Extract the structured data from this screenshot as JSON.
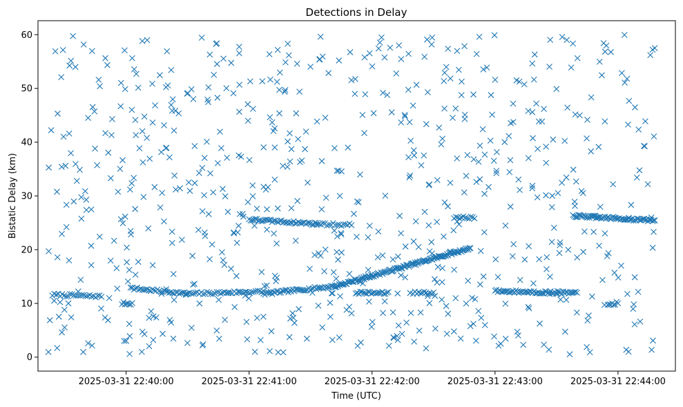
{
  "chart_data": {
    "type": "scatter",
    "title": "Detections in Delay",
    "xlabel": "Time (UTC)",
    "ylabel": "Bistatic Delay (km)",
    "marker": "x",
    "color": "#1f77b4",
    "xlim": [
      "2025-03-31 22:39:17",
      "2025-03-31 22:44:28"
    ],
    "ylim": [
      -2.6,
      62.6
    ],
    "grid": false,
    "x_ticks": [
      {
        "time": "2025-03-31 22:40:00",
        "label": "2025-03-31 22:40:00"
      },
      {
        "time": "2025-03-31 22:41:00",
        "label": "2025-03-31 22:41:00"
      },
      {
        "time": "2025-03-31 22:42:00",
        "label": "2025-03-31 22:42:00"
      },
      {
        "time": "2025-03-31 22:43:00",
        "label": "2025-03-31 22:43:00"
      },
      {
        "time": "2025-03-31 22:44:00",
        "label": "2025-03-31 22:44:00"
      }
    ],
    "y_ticks": [
      {
        "value": 0,
        "label": "0"
      },
      {
        "value": 10,
        "label": "10"
      },
      {
        "value": 20,
        "label": "20"
      },
      {
        "value": 30,
        "label": "30"
      },
      {
        "value": 40,
        "label": "40"
      },
      {
        "value": 50,
        "label": "50"
      },
      {
        "value": 60,
        "label": "60"
      }
    ],
    "track_segments": [
      {
        "t_start": "2025-03-31 22:39:24",
        "t_end": "2025-03-31 22:39:48",
        "delay_start": 11.6,
        "delay_end": 11.3,
        "count": 26
      },
      {
        "t_start": "2025-03-31 22:39:58",
        "t_end": "2025-03-31 22:40:03",
        "delay_start": 10.0,
        "delay_end": 10.0,
        "count": 8
      },
      {
        "t_start": "2025-03-31 22:40:03",
        "t_end": "2025-03-31 22:40:30",
        "delay_start": 12.8,
        "delay_end": 11.8,
        "count": 34
      },
      {
        "t_start": "2025-03-31 22:40:30",
        "t_end": "2025-03-31 22:41:07",
        "delay_start": 11.8,
        "delay_end": 12.2,
        "count": 40
      },
      {
        "t_start": "2025-03-31 22:41:07",
        "t_end": "2025-03-31 22:41:42",
        "delay_start": 11.8,
        "delay_end": 13.2,
        "count": 50
      },
      {
        "t_start": "2025-03-31 22:41:42",
        "t_end": "2025-03-31 22:42:48",
        "delay_start": 13.2,
        "delay_end": 20.3,
        "count": 140
      },
      {
        "t_start": "2025-03-31 22:41:00",
        "t_end": "2025-03-31 22:41:33",
        "delay_start": 25.6,
        "delay_end": 24.8,
        "count": 45
      },
      {
        "t_start": "2025-03-31 22:41:33",
        "t_end": "2025-03-31 22:41:50",
        "delay_start": 24.8,
        "delay_end": 24.6,
        "count": 18
      },
      {
        "t_start": "2025-03-31 22:41:52",
        "t_end": "2025-03-31 22:42:08",
        "delay_start": 12.0,
        "delay_end": 11.9,
        "count": 22
      },
      {
        "t_start": "2025-03-31 22:42:40",
        "t_end": "2025-03-31 22:42:50",
        "delay_start": 26.0,
        "delay_end": 26.0,
        "count": 12
      },
      {
        "t_start": "2025-03-31 22:43:00",
        "t_end": "2025-03-31 22:43:40",
        "delay_start": 12.3,
        "delay_end": 11.9,
        "count": 60
      },
      {
        "t_start": "2025-03-31 22:43:38",
        "t_end": "2025-03-31 22:44:18",
        "delay_start": 26.3,
        "delay_end": 25.4,
        "count": 70
      },
      {
        "t_start": "2025-03-31 22:42:20",
        "t_end": "2025-03-31 22:42:30",
        "delay_start": 12.0,
        "delay_end": 12.0,
        "count": 12
      },
      {
        "t_start": "2025-03-31 22:43:55",
        "t_end": "2025-03-31 22:44:00",
        "delay_start": 9.5,
        "delay_end": 10.2,
        "count": 8
      }
    ],
    "scattered_detections": {
      "count": 720,
      "t_range": [
        "2025-03-31 22:39:22",
        "2025-03-31 22:44:18"
      ],
      "delay_range": [
        0.5,
        60
      ],
      "seed": 7
    }
  }
}
